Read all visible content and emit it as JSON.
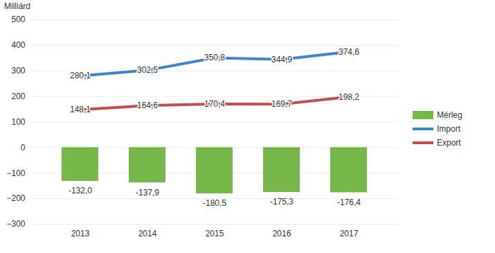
{
  "chart_data": {
    "type": "bar",
    "ylabel": "Milliárd",
    "categories": [
      "2013",
      "2014",
      "2015",
      "2016",
      "2017"
    ],
    "series": [
      {
        "name": "Mérleg",
        "type": "bar",
        "color": "#77b74a",
        "values": [
          -132.0,
          -137.9,
          -180.5,
          -175.3,
          -176.4
        ],
        "value_labels": [
          "-132,0",
          "-137,9",
          "-180,5",
          "-175,3",
          "-176,4"
        ]
      },
      {
        "name": "Import",
        "type": "line",
        "color": "#3f86c8",
        "values": [
          280.1,
          302.5,
          350.8,
          344.9,
          374.6
        ],
        "value_labels": [
          "280,1",
          "302,5",
          "350,8",
          "344,9",
          "374,6"
        ]
      },
      {
        "name": "Export",
        "type": "line",
        "color": "#c0504d",
        "values": [
          148.1,
          164.6,
          170.4,
          169.7,
          198.2
        ],
        "value_labels": [
          "148,1",
          "164,6",
          "170,4",
          "169,7",
          "198,2"
        ]
      }
    ],
    "ylim": [
      -300,
      500
    ],
    "yticks": [
      -300,
      -200,
      -100,
      0,
      100,
      200,
      300,
      400,
      500
    ],
    "grid": true,
    "legend": "right",
    "data_labels": true
  }
}
